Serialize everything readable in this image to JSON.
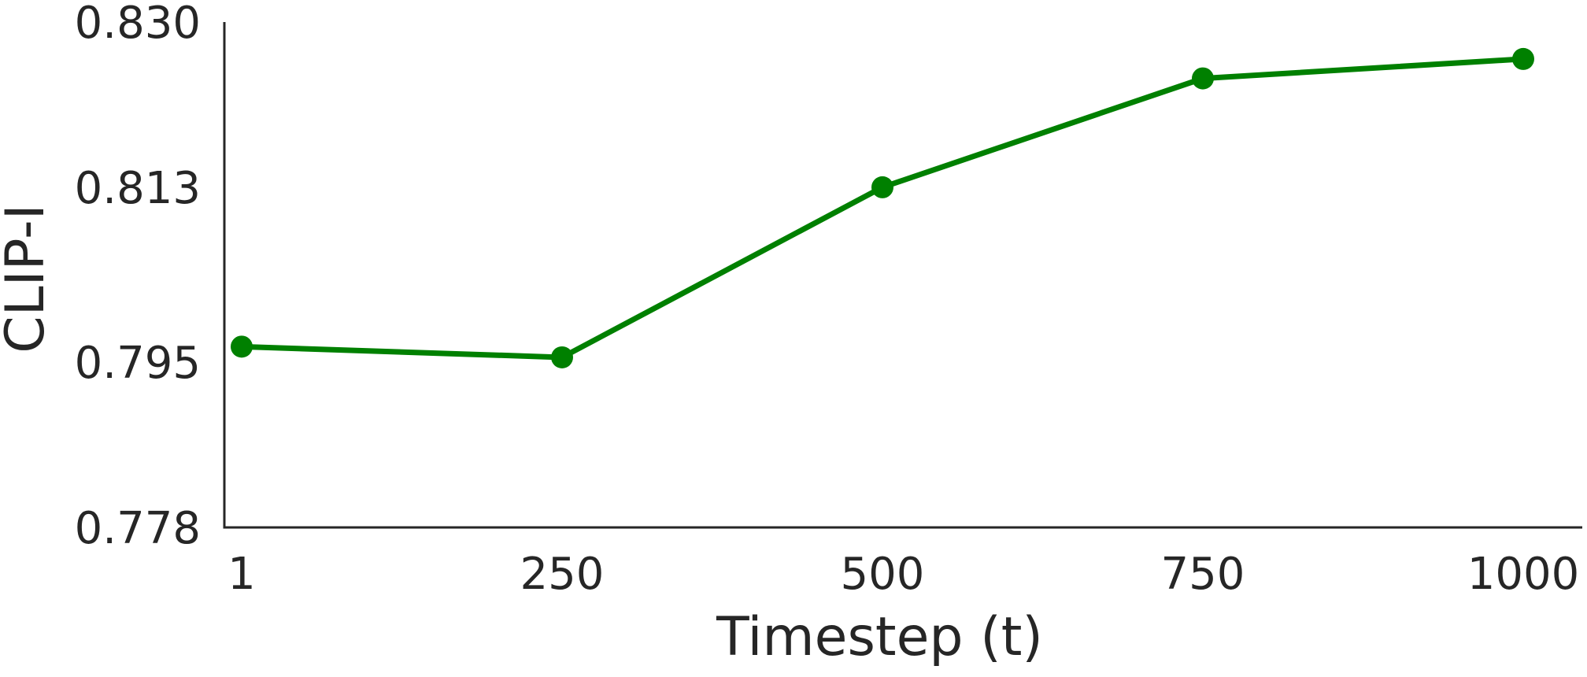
{
  "chart_data": {
    "type": "line",
    "x": [
      1,
      250,
      500,
      750,
      1000
    ],
    "x_tick_labels": [
      "1",
      "250",
      "500",
      "750",
      "1000"
    ],
    "series": [
      {
        "values": [
          0.7966,
          0.7955,
          0.813,
          0.8242,
          0.8262
        ],
        "color": "#008000"
      }
    ],
    "xlabel": "Timestep (t)",
    "ylabel": "CLIP-I",
    "ylim": [
      0.778,
      0.83
    ],
    "y_ticks": [
      0.778,
      0.795,
      0.813,
      0.83
    ],
    "y_tick_labels": [
      "0.778",
      "0.795",
      "0.813",
      "0.830"
    ],
    "x_scale": "categorical",
    "grid": false,
    "legend": "none",
    "axis_color": "#262626"
  }
}
